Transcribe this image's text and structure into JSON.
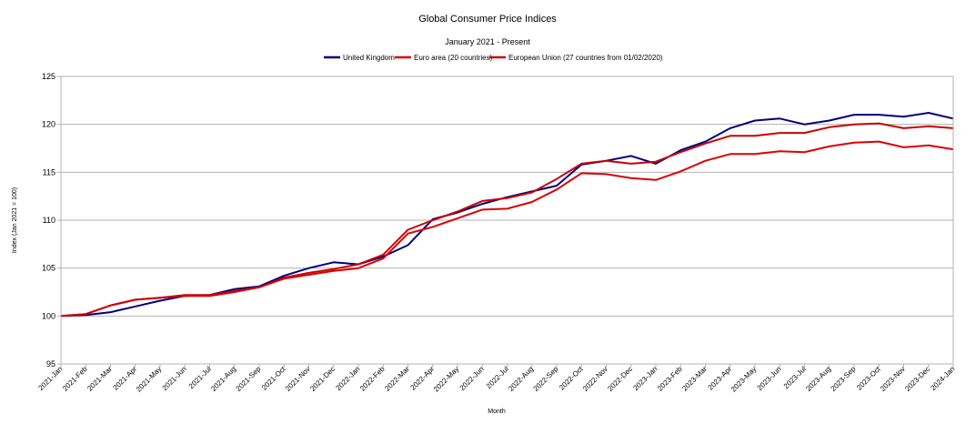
{
  "chart_data": {
    "type": "line",
    "title": "Global Consumer Price Indices",
    "subtitle": "January 2021 - Present",
    "xlabel": "Month",
    "ylabel": "Index (Jan 2021 = 100)",
    "ylim": [
      95,
      125
    ],
    "yticks": [
      95,
      100,
      105,
      110,
      115,
      120,
      125
    ],
    "grid": true,
    "legend_position": "top-center",
    "categories": [
      "2021-Jan",
      "2021-Feb",
      "2021-Mar",
      "2021-Apr",
      "2021-May",
      "2021-Jun",
      "2021-Jul",
      "2021-Aug",
      "2021-Sep",
      "2021-Oct",
      "2021-Nov",
      "2021-Dec",
      "2022-Jan",
      "2022-Feb",
      "2022-Mar",
      "2022-Apr",
      "2022-May",
      "2022-Jun",
      "2022-Jul",
      "2022-Aug",
      "2022-Sep",
      "2022-Oct",
      "2022-Nov",
      "2022-Dec",
      "2023-Jan",
      "2023-Feb",
      "2023-Mar",
      "2023-Apr",
      "2023-May",
      "2023-Jun",
      "2023-Jul",
      "2023-Aug",
      "2023-Sep",
      "2023-Oct",
      "2023-Nov",
      "2023-Dec",
      "2024-Jan"
    ],
    "series": [
      {
        "name": "United Kingdom",
        "color": "#000080",
        "values": [
          100.0,
          100.1,
          100.4,
          101.0,
          101.6,
          102.1,
          102.2,
          102.8,
          103.1,
          104.2,
          105.0,
          105.6,
          105.4,
          106.2,
          107.4,
          110.1,
          110.8,
          111.7,
          112.4,
          113.0,
          113.6,
          115.8,
          116.2,
          116.7,
          115.9,
          117.3,
          118.2,
          119.6,
          120.4,
          120.6,
          120.0,
          120.4,
          121.0,
          121.0,
          120.8,
          121.2,
          120.6
        ]
      },
      {
        "name": "Euro area (20 countries)",
        "color": "#dd0000",
        "values": [
          100.0,
          100.2,
          101.1,
          101.7,
          101.9,
          102.1,
          102.1,
          102.5,
          103.0,
          103.9,
          104.3,
          104.7,
          105.0,
          106.0,
          108.6,
          109.3,
          110.2,
          111.1,
          111.2,
          111.9,
          113.2,
          114.9,
          114.8,
          114.4,
          114.2,
          115.1,
          116.2,
          116.9,
          116.9,
          117.2,
          117.1,
          117.7,
          118.1,
          118.2,
          117.6,
          117.8,
          117.4
        ]
      },
      {
        "name": "European Union (27 countries from 01/02/2020)",
        "color": "#cc0000",
        "values": [
          100.0,
          100.2,
          101.1,
          101.7,
          101.9,
          102.2,
          102.2,
          102.6,
          103.0,
          104.0,
          104.5,
          104.9,
          105.4,
          106.4,
          109.0,
          110.0,
          110.9,
          112.0,
          112.3,
          112.9,
          114.3,
          115.9,
          116.2,
          115.9,
          116.1,
          117.1,
          118.0,
          118.8,
          118.8,
          119.1,
          119.1,
          119.7,
          120.0,
          120.1,
          119.6,
          119.8,
          119.6
        ]
      }
    ]
  }
}
